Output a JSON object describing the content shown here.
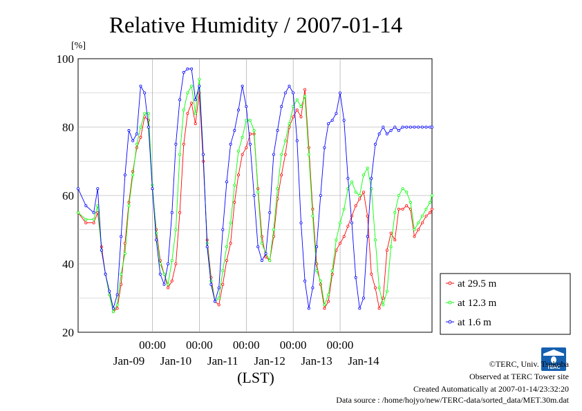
{
  "chart_data": {
    "type": "line",
    "title": "Relative Humidity / 2007-01-14",
    "ylabel": "[%]",
    "xlabel": "(LST)",
    "ylim": [
      20,
      100
    ],
    "yticks": [
      20,
      40,
      60,
      80,
      100
    ],
    "x_range_hours": [
      -38,
      143
    ],
    "time_ticks": [
      "00:00",
      "00:00",
      "00:00",
      "00:00",
      "00:00"
    ],
    "date_labels": [
      "Jan-09",
      "Jan-10",
      "Jan-11",
      "Jan-12",
      "Jan-13",
      "Jan-14"
    ],
    "grid": true,
    "legend_position": "right",
    "colors": {
      "29.5m": "#ff0000",
      "12.3m": "#00ff00",
      "1.6m": "#0000ff"
    },
    "series": [
      {
        "name": "at 29.5 m",
        "color": "#ff0000",
        "x": [
          -38,
          -34,
          -30,
          -28,
          -26,
          -24,
          -22,
          -20,
          -18,
          -16,
          -14,
          -12,
          -10,
          -8,
          -6,
          -4,
          -2,
          0,
          2,
          4,
          6,
          8,
          10,
          12,
          14,
          16,
          18,
          20,
          22,
          24,
          26,
          28,
          30,
          32,
          34,
          36,
          38,
          40,
          42,
          44,
          46,
          48,
          50,
          52,
          54,
          56,
          58,
          60,
          62,
          64,
          66,
          68,
          70,
          72,
          74,
          76,
          78,
          80,
          82,
          84,
          86,
          88,
          90,
          92,
          94,
          96,
          98,
          100,
          102,
          104,
          106,
          108,
          110,
          112,
          114,
          116,
          118,
          120,
          122,
          124,
          126,
          128,
          130,
          132,
          134,
          136,
          138,
          140,
          142,
          143
        ],
        "y": [
          55,
          52,
          52,
          55,
          45,
          37,
          31,
          26,
          27,
          34,
          46,
          58,
          67,
          74,
          77,
          83,
          82,
          62,
          50,
          41,
          37,
          33,
          35,
          40,
          55,
          75,
          84,
          87,
          81,
          90,
          70,
          47,
          36,
          29,
          28,
          34,
          41,
          46,
          58,
          66,
          72,
          74,
          78,
          78,
          62,
          48,
          42,
          41,
          48,
          59,
          66,
          72,
          80,
          83,
          85,
          83,
          91,
          74,
          56,
          40,
          34,
          27,
          29,
          37,
          44,
          46,
          48,
          51,
          54,
          57,
          59,
          61,
          54,
          37,
          33,
          27,
          30,
          44,
          49,
          47,
          56,
          56,
          57,
          56,
          48,
          50,
          52,
          54,
          55,
          56
        ]
      },
      {
        "name": "at 12.3 m",
        "color": "#00ff00",
        "x": [
          -38,
          -34,
          -30,
          -28,
          -26,
          -24,
          -22,
          -20,
          -18,
          -16,
          -14,
          -12,
          -10,
          -8,
          -6,
          -4,
          -2,
          0,
          2,
          4,
          6,
          8,
          10,
          12,
          14,
          16,
          18,
          20,
          22,
          24,
          26,
          28,
          30,
          32,
          34,
          36,
          38,
          40,
          42,
          44,
          46,
          48,
          50,
          52,
          54,
          56,
          58,
          60,
          62,
          64,
          66,
          68,
          70,
          72,
          74,
          76,
          78,
          80,
          82,
          84,
          86,
          88,
          90,
          92,
          94,
          96,
          98,
          100,
          102,
          104,
          106,
          108,
          110,
          112,
          114,
          116,
          118,
          120,
          122,
          124,
          126,
          128,
          130,
          132,
          134,
          136,
          138,
          140,
          142,
          143
        ],
        "y": [
          55,
          53,
          53,
          57,
          44,
          37,
          31,
          26,
          28,
          37,
          43,
          57,
          66,
          75,
          80,
          84,
          84,
          63,
          49,
          40,
          37,
          34,
          41,
          50,
          72,
          85,
          90,
          92,
          84,
          94,
          72,
          46,
          35,
          29,
          30,
          38,
          45,
          52,
          63,
          73,
          77,
          82,
          82,
          79,
          61,
          46,
          43,
          41,
          50,
          62,
          72,
          76,
          81,
          86,
          88,
          86,
          89,
          72,
          54,
          38,
          35,
          28,
          31,
          38,
          47,
          52,
          56,
          62,
          64,
          61,
          60,
          66,
          68,
          62,
          47,
          33,
          28,
          32,
          45,
          55,
          60,
          62,
          61,
          58,
          50,
          52,
          54,
          56,
          58,
          60
        ]
      },
      {
        "name": "at 1.6 m",
        "color": "#0000ff",
        "x": [
          -38,
          -34,
          -30,
          -28,
          -26,
          -24,
          -22,
          -20,
          -18,
          -16,
          -14,
          -12,
          -10,
          -8,
          -6,
          -4,
          -2,
          0,
          2,
          4,
          6,
          8,
          10,
          12,
          14,
          16,
          18,
          20,
          22,
          24,
          26,
          28,
          30,
          32,
          34,
          36,
          38,
          40,
          42,
          44,
          46,
          48,
          50,
          52,
          54,
          56,
          58,
          60,
          62,
          64,
          66,
          68,
          70,
          72,
          74,
          76,
          78,
          80,
          82,
          84,
          86,
          88,
          90,
          92,
          94,
          96,
          98,
          100,
          102,
          104,
          106,
          108,
          110,
          112,
          114,
          116,
          118,
          120,
          122,
          124,
          126,
          128,
          130,
          132,
          134,
          136,
          138,
          140,
          142,
          143
        ],
        "y": [
          62,
          57,
          55,
          62,
          44,
          37,
          32,
          27,
          31,
          48,
          66,
          79,
          76,
          78,
          92,
          90,
          80,
          62,
          47,
          37,
          34,
          40,
          55,
          75,
          88,
          96,
          97,
          97,
          88,
          92,
          72,
          45,
          34,
          29,
          33,
          50,
          64,
          75,
          79,
          85,
          92,
          86,
          75,
          60,
          45,
          41,
          43,
          55,
          72,
          79,
          86,
          90,
          92,
          90,
          76,
          52,
          35,
          27,
          33,
          45,
          60,
          74,
          81,
          82,
          84,
          90,
          82,
          65,
          52,
          36,
          27,
          30,
          48,
          65,
          75,
          78,
          80,
          78,
          79,
          80,
          79,
          80,
          80,
          80,
          80,
          80,
          80,
          80,
          80,
          80
        ]
      }
    ]
  },
  "footer": {
    "copyright": "©TERC, Univ. Tsukuba",
    "observed": "Observed at TERC Tower site",
    "created": "Created Automatically at 2007-01-14/23:32:20",
    "source": "Data source : /home/hojyo/new/TERC-data/sorted_data/MET.30m.dat"
  },
  "logo": {
    "text": "TERC",
    "color": "#1560b0"
  }
}
